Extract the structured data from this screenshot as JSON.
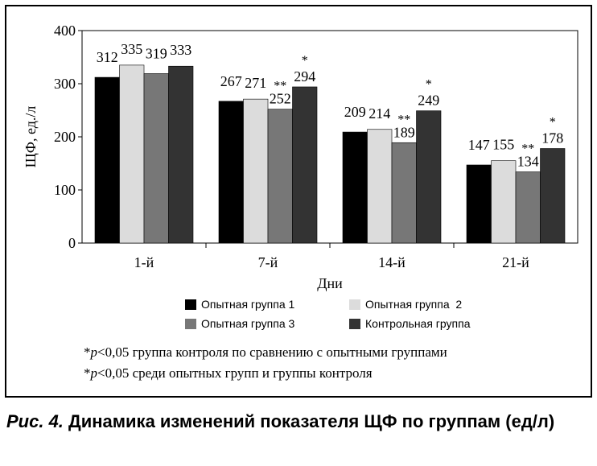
{
  "chart_data": {
    "type": "bar",
    "categories": [
      "1-й",
      "7-й",
      "14-й",
      "21-й"
    ],
    "series": [
      {
        "name": "Опытная группа 1",
        "color": "#000000",
        "values": [
          312,
          267,
          209,
          147
        ],
        "marks": [
          "",
          "",
          "",
          ""
        ]
      },
      {
        "name": "Опытная группа  2",
        "color": "#dcdcdc",
        "values": [
          335,
          271,
          214,
          155
        ],
        "marks": [
          "",
          "",
          "",
          ""
        ]
      },
      {
        "name": "Опытная группа 3",
        "color": "#777777",
        "values": [
          319,
          252,
          189,
          134
        ],
        "marks": [
          "",
          "**",
          "**",
          "**"
        ]
      },
      {
        "name": "Контрольная группа",
        "color": "#333333",
        "values": [
          333,
          294,
          249,
          178
        ],
        "marks": [
          "",
          "*",
          "*",
          "*"
        ]
      }
    ],
    "xlabel": "Дни",
    "ylabel": "ЩФ, ед./л",
    "ylim": [
      0,
      400
    ],
    "yticks": [
      0,
      100,
      200,
      300,
      400
    ],
    "grid": false,
    "legend_position": "bottom"
  },
  "notes": {
    "note1_prefix": "*",
    "note1_p": "p",
    "note1_rest": "<0,05 группа контроля по сравнению с опытными группами",
    "note2_prefix": "*",
    "note2_p": "p",
    "note2_rest": "<0,05 среди опытных групп и группы контроля"
  },
  "caption": {
    "fig_label": "Рис. 4.",
    "text": " Динамика изменений показателя ЩФ по группам (ед/л)"
  }
}
